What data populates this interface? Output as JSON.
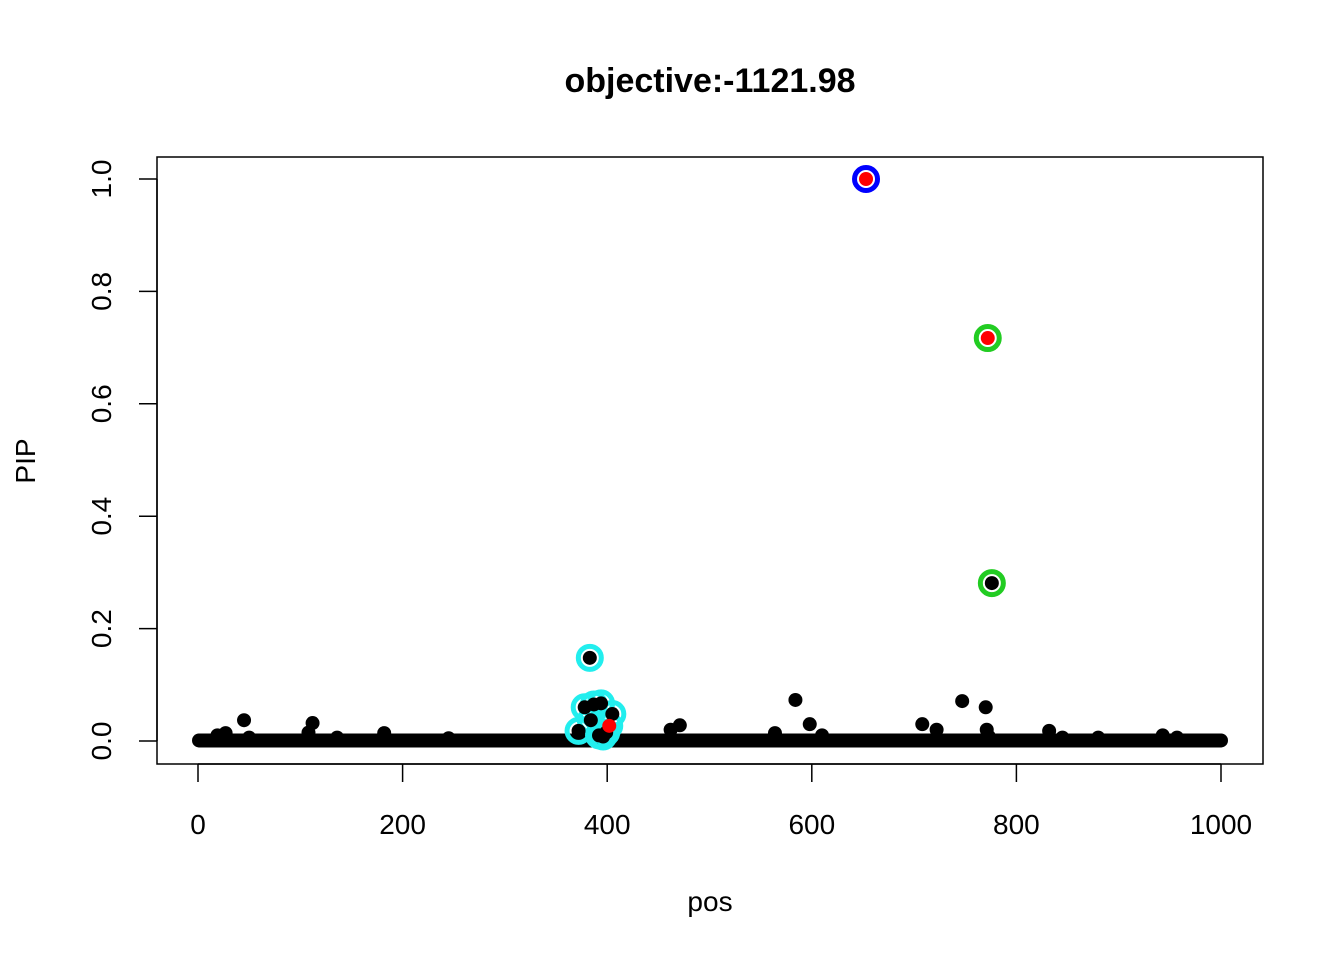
{
  "chart_data": {
    "type": "scatter",
    "title": "objective:-1121.98",
    "xlabel": "pos",
    "ylabel": "PIP",
    "xlim": [
      0,
      1000
    ],
    "ylim": [
      0,
      1
    ],
    "x_ticks": [
      0,
      200,
      400,
      600,
      800,
      1000
    ],
    "x_tick_labels": [
      "0",
      "200",
      "400",
      "600",
      "800",
      "1000"
    ],
    "y_ticks": [
      0,
      0.2,
      0.4,
      0.6,
      0.8,
      1.0
    ],
    "y_tick_labels": [
      "0.0",
      "0.2",
      "0.4",
      "0.6",
      "0.8",
      "1.0"
    ],
    "grid": false,
    "legend": "none",
    "baseline": {
      "pos_range": [
        1,
        1000
      ],
      "pip": 0.001,
      "color": "#000000"
    },
    "points": [
      {
        "pos": 19,
        "pip": 0.01
      },
      {
        "pos": 27,
        "pip": 0.014
      },
      {
        "pos": 45,
        "pip": 0.037
      },
      {
        "pos": 50,
        "pip": 0.006
      },
      {
        "pos": 108,
        "pip": 0.015
      },
      {
        "pos": 112,
        "pip": 0.032
      },
      {
        "pos": 136,
        "pip": 0.006
      },
      {
        "pos": 182,
        "pip": 0.014
      },
      {
        "pos": 245,
        "pip": 0.005
      },
      {
        "pos": 462,
        "pip": 0.02
      },
      {
        "pos": 471,
        "pip": 0.028
      },
      {
        "pos": 564,
        "pip": 0.014
      },
      {
        "pos": 584,
        "pip": 0.073
      },
      {
        "pos": 598,
        "pip": 0.03
      },
      {
        "pos": 610,
        "pip": 0.01
      },
      {
        "pos": 708,
        "pip": 0.03
      },
      {
        "pos": 722,
        "pip": 0.02
      },
      {
        "pos": 747,
        "pip": 0.071
      },
      {
        "pos": 770,
        "pip": 0.06
      },
      {
        "pos": 771,
        "pip": 0.02
      },
      {
        "pos": 773,
        "pip": 0.008
      },
      {
        "pos": 832,
        "pip": 0.018
      },
      {
        "pos": 845,
        "pip": 0.006
      },
      {
        "pos": 880,
        "pip": 0.006
      },
      {
        "pos": 943,
        "pip": 0.01
      },
      {
        "pos": 957,
        "pip": 0.006
      },
      {
        "pos": 383,
        "pip": 0.148,
        "cs": 3
      },
      {
        "pos": 378,
        "pip": 0.06,
        "cs": 3
      },
      {
        "pos": 387,
        "pip": 0.065,
        "cs": 3
      },
      {
        "pos": 394,
        "pip": 0.067,
        "cs": 3
      },
      {
        "pos": 405,
        "pip": 0.048,
        "cs": 3
      },
      {
        "pos": 372,
        "pip": 0.018,
        "cs": 3
      },
      {
        "pos": 384,
        "pip": 0.037,
        "cs": 3
      },
      {
        "pos": 392,
        "pip": 0.01,
        "cs": 3
      },
      {
        "pos": 396,
        "pip": 0.008,
        "cs": 3
      },
      {
        "pos": 399,
        "pip": 0.015,
        "cs": 3
      },
      {
        "pos": 402,
        "pip": 0.027,
        "cs": 3,
        "causal": true
      },
      {
        "pos": 653,
        "pip": 1.0,
        "cs": 1,
        "causal": true
      },
      {
        "pos": 772,
        "pip": 0.717,
        "cs": 2,
        "causal": true
      },
      {
        "pos": 776,
        "pip": 0.281,
        "cs": 2
      }
    ],
    "colors": {
      "point": "#000000",
      "causal": "#ff0000",
      "cs1": "#0000ff",
      "cs2": "#22cc22",
      "cs3": "#22eeee"
    }
  }
}
